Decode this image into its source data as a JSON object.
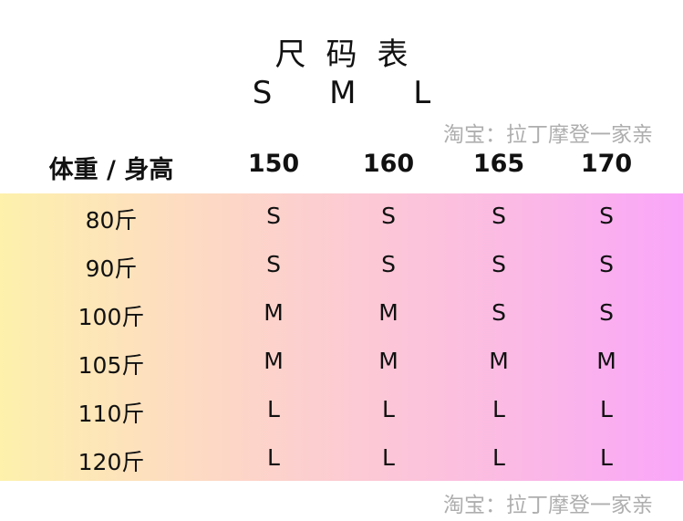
{
  "title": "尺码表",
  "subtitle": "S M L",
  "table": {
    "headers": [
      "体重 / 身高",
      "150",
      "160",
      "165",
      "170"
    ],
    "rows": [
      [
        "80斤",
        "S",
        "S",
        "S",
        "S"
      ],
      [
        "90斤",
        "S",
        "S",
        "S",
        "S"
      ],
      [
        "100斤",
        "M",
        "M",
        "S",
        "S"
      ],
      [
        "105斤",
        "M",
        "M",
        "M",
        "M"
      ],
      [
        "110斤",
        "L",
        "L",
        "L",
        "L"
      ],
      [
        "120斤",
        "L",
        "L",
        "L",
        "L"
      ]
    ]
  },
  "watermark": "淘宝：拉丁摩登一家亲",
  "colors": {
    "gradient_start": "#fdf1ac",
    "gradient_end": "#f9a6f9"
  }
}
